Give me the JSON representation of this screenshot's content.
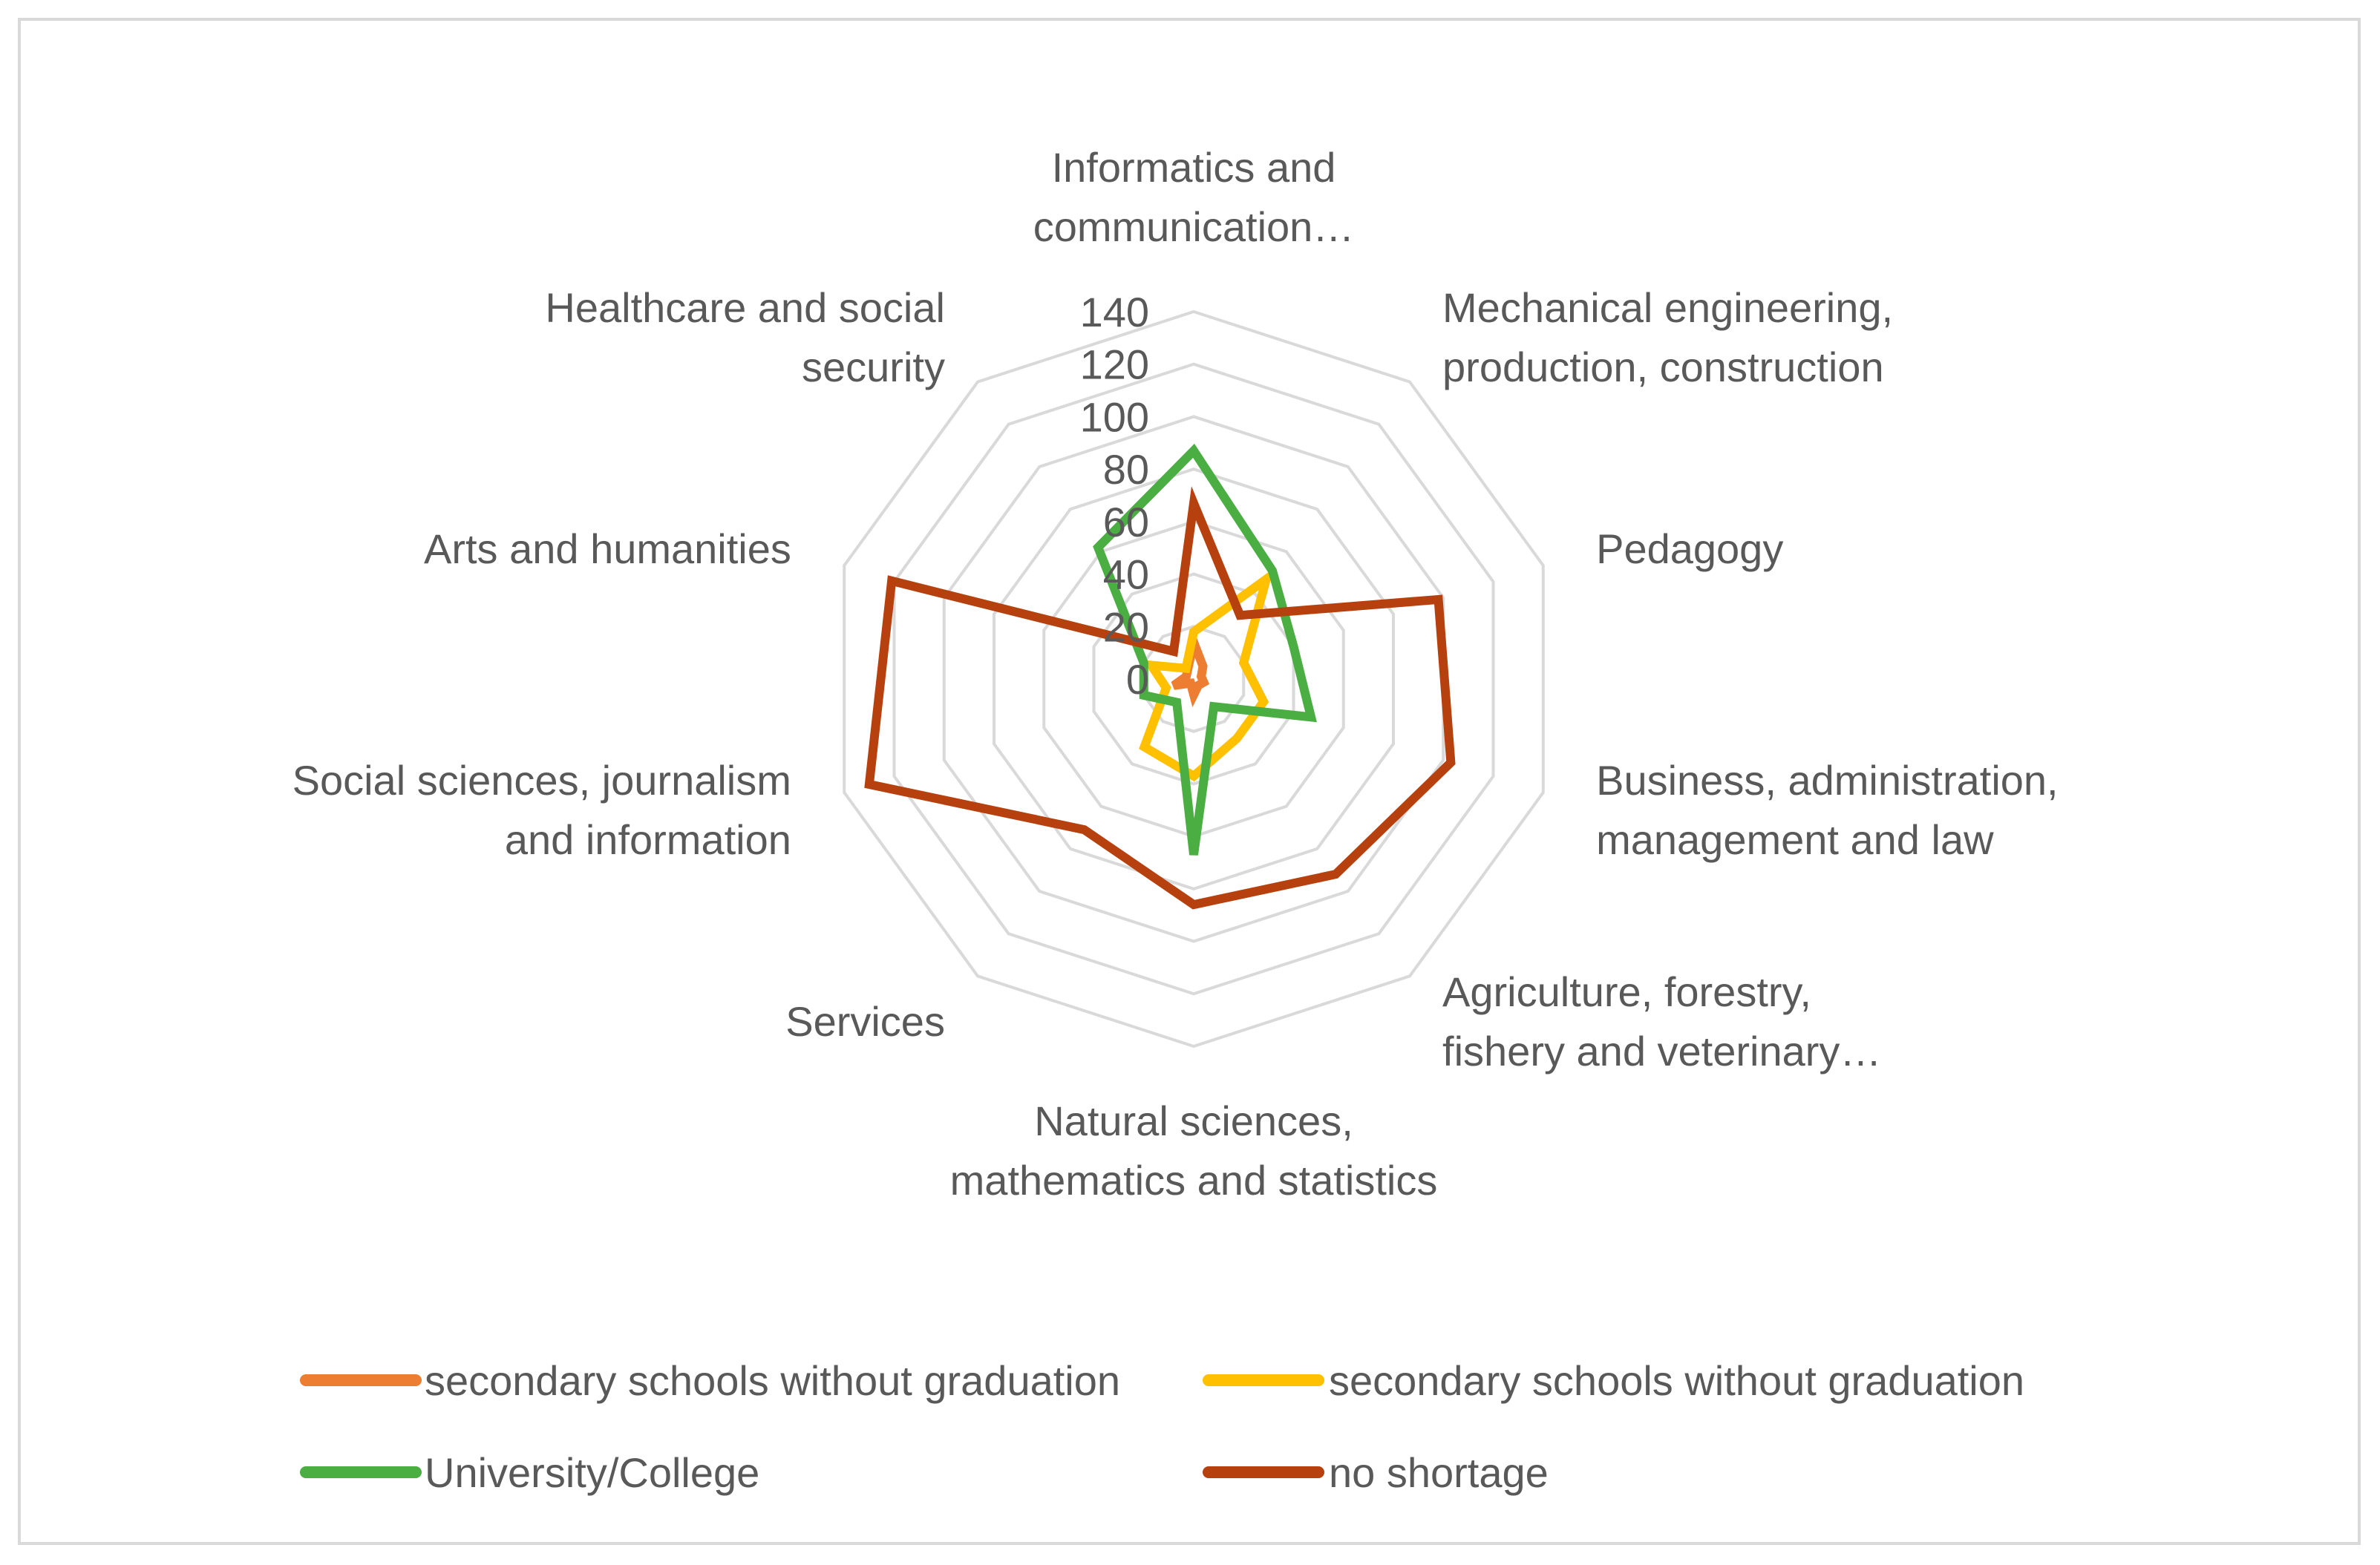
{
  "chart_data": {
    "type": "radar",
    "title": "",
    "categories": [
      [
        "Informatics and",
        "communication…"
      ],
      [
        "Mechanical engineering,",
        "production, construction"
      ],
      [
        "Pedagogy"
      ],
      [
        "Business, administration,",
        "management and law"
      ],
      [
        "Agriculture, forestry,",
        "fishery and veterinary…"
      ],
      [
        "Natural sciences,",
        "mathematics and statistics"
      ],
      [
        "Services"
      ],
      [
        "Social sciences, journalism",
        "and information"
      ],
      [
        "Arts and humanities"
      ],
      [
        "Healthcare and social",
        "security"
      ]
    ],
    "rlim": [
      0,
      140
    ],
    "ticks": [
      0,
      20,
      40,
      60,
      80,
      100,
      120,
      140
    ],
    "tick_labels": [
      "0",
      "20",
      "40",
      "60",
      "80",
      "100",
      "120",
      "140"
    ],
    "series": [
      {
        "name": "secondary schools without graduation",
        "color": "#ED7D31",
        "values": [
          14,
          6,
          3,
          4,
          3,
          6,
          2,
          8,
          3,
          4
        ]
      },
      {
        "name": "secondary schools without graduation",
        "color": "#FFC000",
        "values": [
          18,
          47,
          20,
          28,
          28,
          37,
          32,
          11,
          17,
          5
        ]
      },
      {
        "name": "University/College",
        "color": "#4AAE42",
        "values": [
          87,
          51,
          40,
          47,
          13,
          67,
          11,
          20,
          20,
          62
        ]
      },
      {
        "name": "no shortage",
        "color": "#B7410E",
        "values": [
          67,
          30,
          98,
          103,
          92,
          86,
          71,
          130,
          121,
          13
        ]
      }
    ],
    "legend_position": "bottom"
  }
}
